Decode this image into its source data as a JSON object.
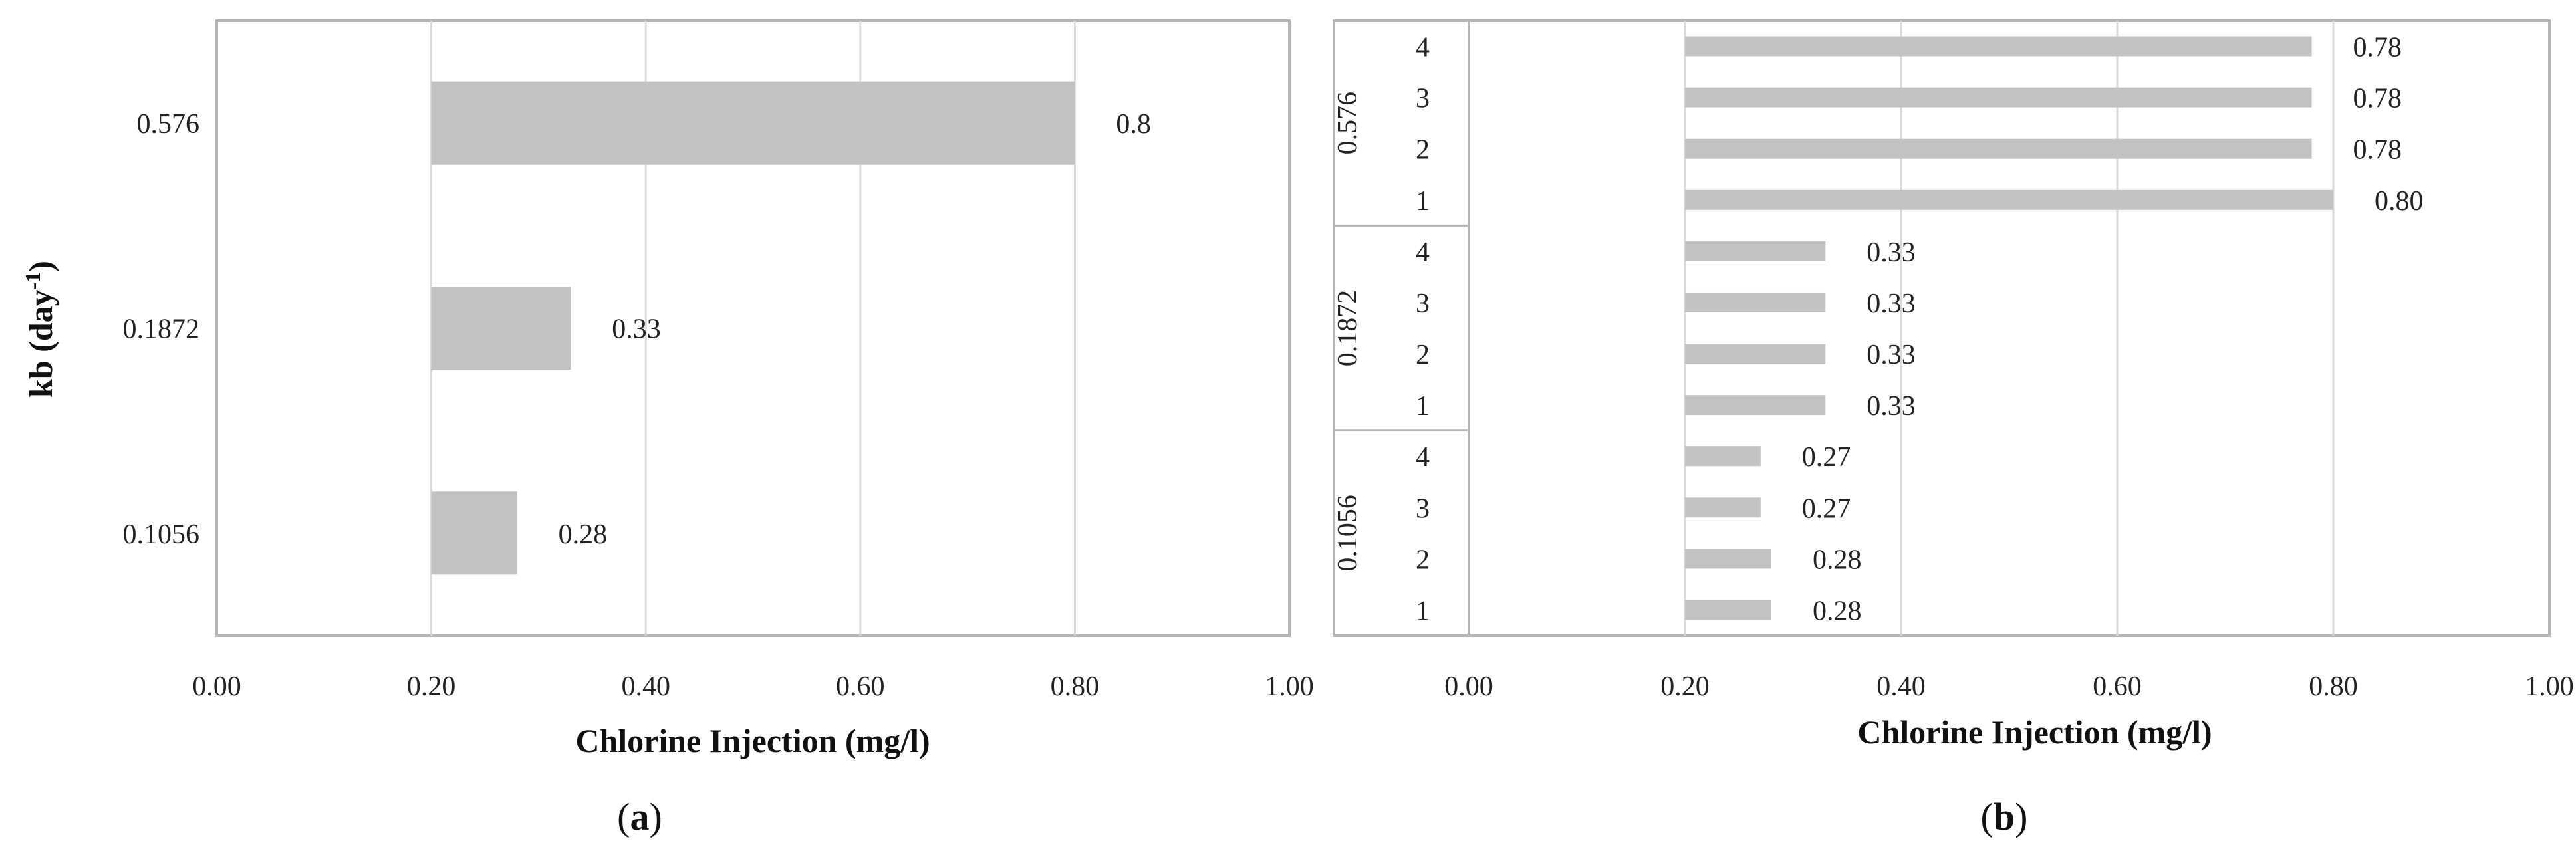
{
  "chart_data": [
    {
      "type": "bar",
      "orientation": "horizontal",
      "panel_label": "a",
      "xlabel": "Chlorine Injection (mg/l)",
      "ylabel_main": "kb (day",
      "ylabel_sup": "-1",
      "ylabel_close": ")",
      "xlim": [
        0,
        1
      ],
      "grid": true,
      "x_ticks": [
        "0.00",
        "0.20",
        "0.40",
        "0.60",
        "0.80",
        "1.00"
      ],
      "categories": [
        "0.576",
        "0.1872",
        "0.1056"
      ],
      "bar_start": [
        0.2,
        0.2,
        0.2
      ],
      "values": [
        0.8,
        0.33,
        0.28
      ],
      "data_labels": [
        "0.8",
        "0.33",
        "0.28"
      ],
      "bar_color": "#c2c2c2"
    },
    {
      "type": "bar",
      "orientation": "horizontal",
      "panel_label": "b",
      "xlabel": "Chlorine Injection (mg/l)",
      "xlim": [
        0,
        1
      ],
      "grid": true,
      "x_ticks": [
        "0.00",
        "0.20",
        "0.40",
        "0.60",
        "0.80",
        "1.00"
      ],
      "groups": [
        {
          "name": "0.576",
          "categories": [
            "4",
            "3",
            "2",
            "1"
          ],
          "bar_start": [
            0.2,
            0.2,
            0.2,
            0.2
          ],
          "values": [
            0.78,
            0.78,
            0.78,
            0.8
          ],
          "data_labels": [
            "0.78",
            "0.78",
            "0.78",
            "0.80"
          ]
        },
        {
          "name": "0.1872",
          "categories": [
            "4",
            "3",
            "2",
            "1"
          ],
          "bar_start": [
            0.2,
            0.2,
            0.2,
            0.2
          ],
          "values": [
            0.33,
            0.33,
            0.33,
            0.33
          ],
          "data_labels": [
            "0.33",
            "0.33",
            "0.33",
            "0.33"
          ]
        },
        {
          "name": "0.1056",
          "categories": [
            "4",
            "3",
            "2",
            "1"
          ],
          "bar_start": [
            0.2,
            0.2,
            0.2,
            0.2
          ],
          "values": [
            0.27,
            0.27,
            0.28,
            0.28
          ],
          "data_labels": [
            "0.27",
            "0.27",
            "0.28",
            "0.28"
          ]
        }
      ],
      "bar_color": "#c2c2c2"
    }
  ]
}
